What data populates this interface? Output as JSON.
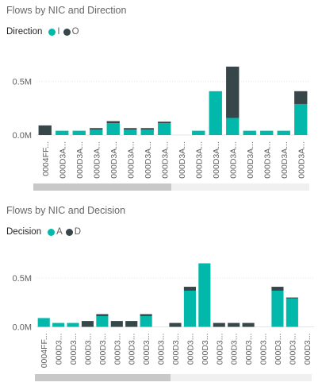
{
  "colors": {
    "first": "#01B8AA",
    "second": "#374649",
    "axis_text": "#605E5C",
    "grid": "#e6e6e6"
  },
  "chart_data": [
    {
      "type": "bar",
      "stacked": true,
      "title": "Flows by NIC and Direction",
      "legend_title": "Direction",
      "legend_position": "top-left",
      "categories": [
        "0004FF...",
        "000D3A...",
        "000D3A...",
        "000D3A...",
        "000D3A...",
        "000D3A...",
        "000D3A...",
        "000D3A...",
        "000D3A...",
        "000D3A...",
        "000D3A...",
        "000D3A...",
        "000D3A...",
        "000D3A...",
        "000D3A...",
        "000D3A..."
      ],
      "y_ticks": [
        0,
        500000
      ],
      "y_tick_labels": [
        "0.0M",
        "0.5M"
      ],
      "ylim": [
        0,
        650000
      ],
      "grid": true,
      "scrollbar_fraction": 0.5,
      "series": [
        {
          "name": "I",
          "color": "#01B8AA",
          "values": [
            0,
            40000,
            40000,
            50000,
            110000,
            50000,
            50000,
            110000,
            0,
            40000,
            410000,
            160000,
            40000,
            40000,
            40000,
            290000
          ]
        },
        {
          "name": "O",
          "color": "#374649",
          "values": [
            90000,
            0,
            0,
            15000,
            20000,
            15000,
            15000,
            15000,
            0,
            0,
            0,
            480000,
            0,
            0,
            0,
            120000
          ]
        }
      ]
    },
    {
      "type": "bar",
      "stacked": true,
      "title": "Flows by NIC and Decision",
      "legend_title": "Decision",
      "legend_position": "top-left",
      "categories": [
        "0004FF...",
        "000D3...",
        "000D3...",
        "000D3...",
        "000D3...",
        "000D3...",
        "000D3...",
        "000D3...",
        "000D3...",
        "000D3...",
        "000D3...",
        "000D3...",
        "000D3...",
        "000D3...",
        "000D3...",
        "000D3...",
        "000D3...",
        "000D3...",
        "000D3..."
      ],
      "y_ticks": [
        0,
        500000
      ],
      "y_tick_labels": [
        "0.0M",
        "0.5M"
      ],
      "ylim": [
        0,
        650000
      ],
      "grid": true,
      "scrollbar_fraction": 0.49,
      "series": [
        {
          "name": "A",
          "color": "#01B8AA",
          "values": [
            90000,
            40000,
            40000,
            0,
            110000,
            0,
            0,
            110000,
            0,
            0,
            370000,
            650000,
            0,
            0,
            0,
            0,
            370000,
            290000,
            0
          ]
        },
        {
          "name": "D",
          "color": "#374649",
          "values": [
            0,
            0,
            0,
            60000,
            20000,
            60000,
            60000,
            20000,
            0,
            40000,
            40000,
            0,
            40000,
            40000,
            40000,
            0,
            40000,
            10000,
            0
          ]
        }
      ]
    }
  ]
}
